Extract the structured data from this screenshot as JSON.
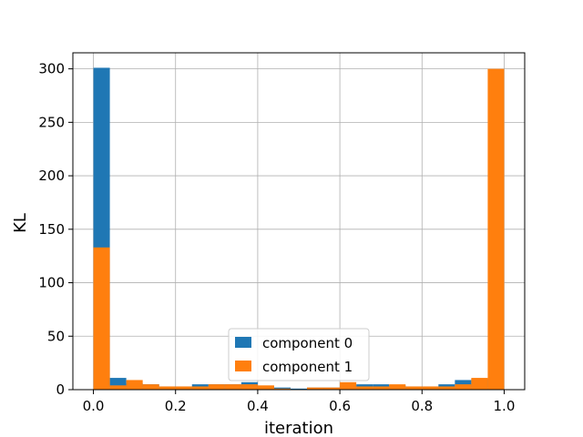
{
  "chart_data": {
    "type": "bar",
    "subtype": "overlaid-histogram",
    "title": "",
    "xlabel": "iteration",
    "ylabel": "KL",
    "xlim": [
      -0.05,
      1.05
    ],
    "ylim": [
      0,
      315
    ],
    "xticks": [
      0.0,
      0.2,
      0.4,
      0.6,
      0.8,
      1.0
    ],
    "xtick_labels": [
      "0.0",
      "0.2",
      "0.4",
      "0.6",
      "0.8",
      "1.0"
    ],
    "yticks": [
      0,
      50,
      100,
      150,
      200,
      250,
      300
    ],
    "ytick_labels": [
      "0",
      "50",
      "100",
      "150",
      "200",
      "250",
      "300"
    ],
    "grid": true,
    "legend_position": "lower center",
    "bin_edges": [
      0.0,
      0.04,
      0.08,
      0.12,
      0.16,
      0.2,
      0.24,
      0.28,
      0.32,
      0.36,
      0.4,
      0.44,
      0.48,
      0.52,
      0.56,
      0.6,
      0.64,
      0.68,
      0.72,
      0.76,
      0.8,
      0.84,
      0.88,
      0.92,
      0.96,
      1.0
    ],
    "series": [
      {
        "name": "component 0",
        "color": "#1f77b4",
        "values": [
          301,
          11,
          6,
          5,
          3,
          3,
          5,
          5,
          5,
          7,
          3,
          2,
          1,
          2,
          2,
          3,
          5,
          5,
          4,
          3,
          3,
          5,
          9,
          10,
          3
        ]
      },
      {
        "name": "component 1",
        "color": "#ff7f0e",
        "values": [
          133,
          4,
          9,
          5,
          3,
          3,
          3,
          5,
          5,
          5,
          4,
          1,
          0,
          2,
          2,
          7,
          3,
          3,
          5,
          3,
          3,
          3,
          5,
          11,
          300
        ]
      }
    ]
  }
}
